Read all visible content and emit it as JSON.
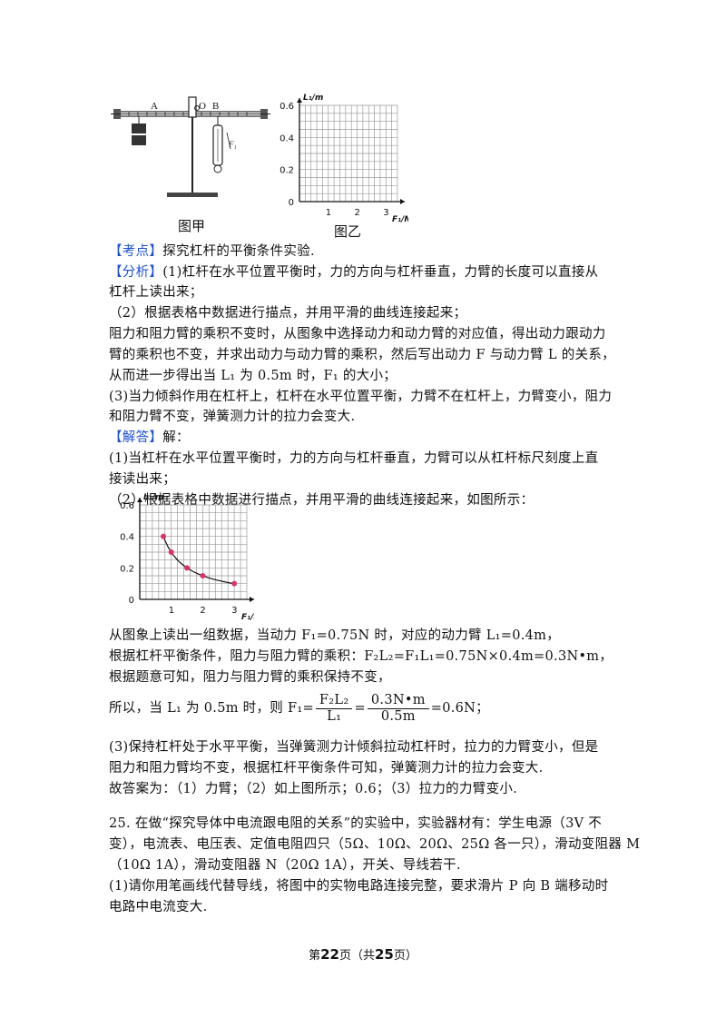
{
  "figure_top": {
    "label_A": "A",
    "label_O": "O",
    "label_B": "B",
    "label_F1_small": "F₁",
    "caption_left": "图甲",
    "caption_right": "图乙",
    "chart_data": {
      "type": "scatter",
      "title": "",
      "xlabel": "F₁/N",
      "ylabel": "L₁/m",
      "xlim": [
        0,
        3.4
      ],
      "ylim": [
        0,
        0.6
      ],
      "x_ticks": [
        "1",
        "2",
        "3"
      ],
      "y_ticks": [
        "0",
        "0.2",
        "0.4",
        "0.6"
      ],
      "grid": true,
      "points": []
    }
  },
  "lines": {
    "kaodian_tag": "【考点】",
    "kaodian_text": "探究杠杆的平衡条件实验.",
    "fenxi_tag": "【分析】",
    "fenxi_1": "(1)杠杆在水平位置平衡时，力的方向与杠杆垂直，力臂的长度可以直接从",
    "fenxi_1b": "杠杆上读出来；",
    "fenxi_2": "（2）根据表格中数据进行描点，并用平滑的曲线连接起来；",
    "fenxi_3": "阻力和阻力臂的乘积不变时，从图象中选择动力和动力臂的对应值，得出动力跟动力",
    "fenxi_4": "臂的乘积也不变，并求出动力与动力臂的乘积，然后写出动力 F 与动力臂 L 的关系，",
    "fenxi_5": "从而进一步得出当 L₁ 为 0.5m 时，F₁ 的大小；",
    "fenxi_6": "(3)当力倾斜作用在杠杆上，杠杆在水平位置平衡，力臂不在杠杆上，力臂变小，阻力",
    "fenxi_7": "和阻力臂不变，弹簧测力计的拉力会变大.",
    "jieda_tag": "【解答】",
    "jieda_text": "解：",
    "jd_1": "(1)当杠杆在水平位置平衡时，力的方向与杠杆垂直，力臂可以从杠杆标尺刻度上直",
    "jd_1b": "接读出来；",
    "jd_2": "（2）根据表格中数据进行描点，并用平滑的曲线连接起来，如图所示：",
    "jd_3": "从图象上读出一组数据，当动力 F₁=0.75N 时，对应的动力臂 L₁=0.4m，",
    "jd_4": "根据杠杆平衡条件，阻力与阻力臂的乘积：F₂L₂=F₁L₁=0.75N×0.4m=0.3N•m，",
    "jd_5": "根据题意可知，阻力与阻力臂的乘积保持不变，",
    "jd_6_pre": "所以，当 L₁ 为 0.5m 时，则 F₁=",
    "jd_6_num1": "F₂L₂",
    "jd_6_den1": "L₁",
    "jd_6_eq": "=",
    "jd_6_num2": "0.3N•m",
    "jd_6_den2": "0.5m",
    "jd_6_post": "=0.6N；",
    "jd_7": "(3)保持杠杆处于水平平衡，当弹簧测力计倾斜拉动杠杆时，拉力的力臂变小，但是",
    "jd_8": "阻力和阻力臂均不变，根据杠杆平衡条件可知，弹簧测力计的拉力会变大.",
    "jd_9": "故答案为：（1）力臂；（2）如上图所示；0.6；（3）拉力的力臂变小.",
    "q25_1": "25. 在做“探究导体中电流跟电阻的关系”的实验中，实验器材有：学生电源（3V 不",
    "q25_2": "变），电流表、电压表、定值电阻四只（5Ω、10Ω、20Ω、25Ω 各一只），滑动变阻器 M",
    "q25_3": "（10Ω  1A），滑动变阻器 N（20Ω  1A），开关、导线若干.",
    "q25_4": "(1)请你用笔画线代替导线，将图中的实物电路连接完整，要求滑片 P 向 B 端移动时",
    "q25_5": "电路中电流变大."
  },
  "figure_answer": {
    "chart_data": {
      "type": "scatter",
      "title": "",
      "xlabel": "F₁/N",
      "ylabel": "L₁/m",
      "xlim": [
        0,
        3.4
      ],
      "ylim": [
        0,
        0.6
      ],
      "x_ticks": [
        "1",
        "2",
        "3"
      ],
      "y_ticks": [
        "0",
        "0.2",
        "0.4",
        "0.6"
      ],
      "grid": true,
      "curve": "smooth",
      "points": [
        {
          "x": 0.75,
          "y": 0.4
        },
        {
          "x": 1.0,
          "y": 0.3
        },
        {
          "x": 1.5,
          "y": 0.2
        },
        {
          "x": 2.0,
          "y": 0.15
        },
        {
          "x": 3.0,
          "y": 0.1
        }
      ]
    }
  },
  "footer": {
    "pre": "第",
    "page": "22",
    "mid": "页（共",
    "total": "25",
    "post": "页）"
  }
}
